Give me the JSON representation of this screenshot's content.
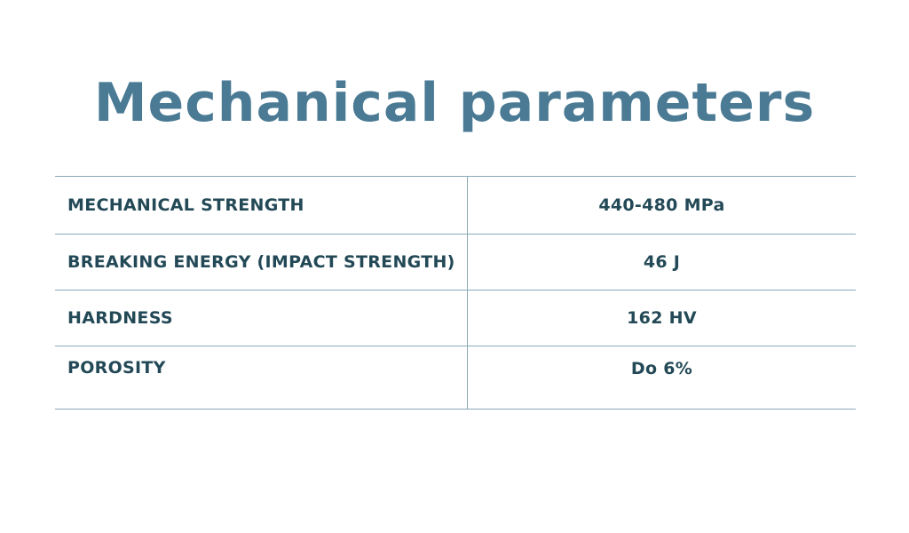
{
  "title": "Mechanical parameters",
  "rows": [
    {
      "label": "MECHANICAL STRENGTH",
      "value": "440-480 MPa"
    },
    {
      "label": "BREAKING ENERGY (IMPACT STRENGTH)",
      "value": "46 J"
    },
    {
      "label": "HARDNESS",
      "value": "162 HV"
    },
    {
      "label": "POROSITY",
      "value": "Do 6%"
    }
  ],
  "colors": {
    "title": "#4a7a94",
    "text": "#234957",
    "rule": "#8aa9b9",
    "background": "#ffffff"
  }
}
